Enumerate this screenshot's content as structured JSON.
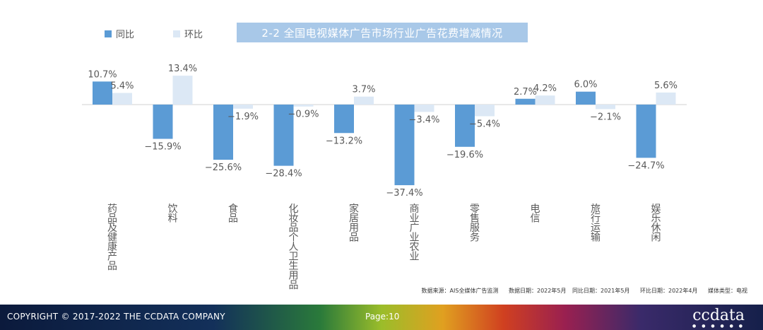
{
  "legend": {
    "yoy_label": "同比",
    "mom_label": "环比"
  },
  "title": "2-2 全国电视媒体广告市场行业广告花费增减情况",
  "source_note": {
    "source": "数据来源：AIS全媒体广告监测",
    "date": "数据日期：2022年5月",
    "yoy_date": "同比日期：2021年5月",
    "mom_date": "环比日期：2022年4月",
    "media": "媒体类型：电视"
  },
  "footer": {
    "copyright": "COPYRIGHT © 2017-2022 THE CCDATA COMPANY",
    "page": "Page:10",
    "logo": "ccdata",
    "logo_dots": "● ● ● ● ● ●"
  },
  "colors": {
    "yoy": "#5b9bd5",
    "mom": "#dce8f5",
    "title_bg": "#a8c8e8"
  },
  "chart_data": {
    "type": "bar",
    "title": "2-2 全国电视媒体广告市场行业广告花费增减情况",
    "categories": [
      "药品及健康产品",
      "饮料",
      "食品",
      "化妆品个人卫生用品",
      "家居用品",
      "商业广业农业",
      "零售服务",
      "电信",
      "旅行运输",
      "娱乐休闲"
    ],
    "series": [
      {
        "name": "同比",
        "values": [
          10.7,
          -15.9,
          -25.6,
          -28.4,
          -13.2,
          -37.4,
          -19.6,
          2.7,
          6.0,
          -24.7
        ],
        "labels": [
          "10.7%",
          "−15.9%",
          "−25.6%",
          "−28.4%",
          "−13.2%",
          "−37.4%",
          "−19.6%",
          "2.7%",
          "6.0%",
          "−24.7%"
        ]
      },
      {
        "name": "环比",
        "values": [
          5.4,
          13.4,
          -1.9,
          -0.9,
          3.7,
          -3.4,
          -5.4,
          4.2,
          -2.1,
          5.6
        ],
        "labels": [
          "5.4%",
          "13.4%",
          "−1.9%",
          "−0.9%",
          "3.7%",
          "−3.4%",
          "−5.4%",
          "4.2%",
          "−2.1%",
          "5.6%"
        ]
      }
    ],
    "xlabel": "",
    "ylabel": "",
    "ylim": [
      -37.4,
      13.4
    ],
    "grid": false,
    "legend": "top-left"
  }
}
